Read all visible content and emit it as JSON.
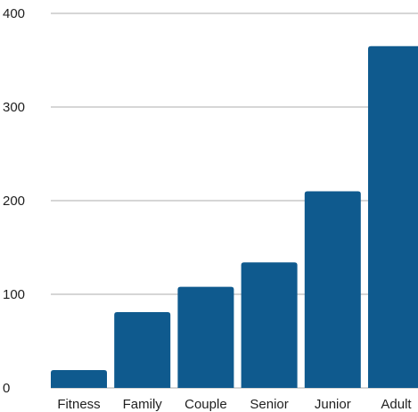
{
  "chart_data": {
    "type": "bar",
    "categories": [
      "Fitness",
      "Family",
      "Couple",
      "Senior",
      "Junior",
      "Adult"
    ],
    "values": [
      19,
      81,
      108,
      134,
      210,
      365
    ],
    "title": "",
    "xlabel": "",
    "ylabel": "",
    "ylim": [
      0,
      400
    ],
    "yticks": [
      0,
      100,
      200,
      300,
      400
    ],
    "grid": true,
    "legend": "none",
    "bar_color": "#0f5a8e",
    "grid_color": "#bdbdbd"
  }
}
